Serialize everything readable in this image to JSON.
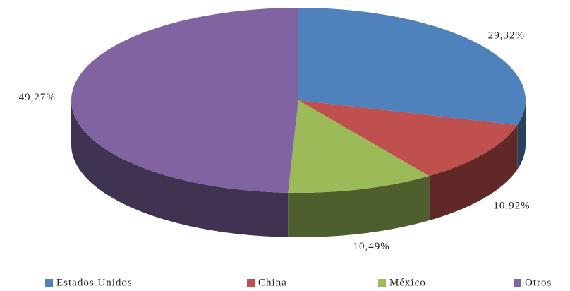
{
  "chart_data": {
    "type": "pie",
    "categories": [
      "Estados Unidos",
      "China",
      "México",
      "Otros"
    ],
    "values": [
      29.32,
      10.92,
      10.49,
      49.27
    ],
    "value_labels": [
      "29,32%",
      "10,92%",
      "10,49%",
      "49,27%"
    ],
    "colors": [
      "#4f81bd",
      "#c0504d",
      "#9bbb59",
      "#8064a2"
    ],
    "legend": "bottom"
  }
}
